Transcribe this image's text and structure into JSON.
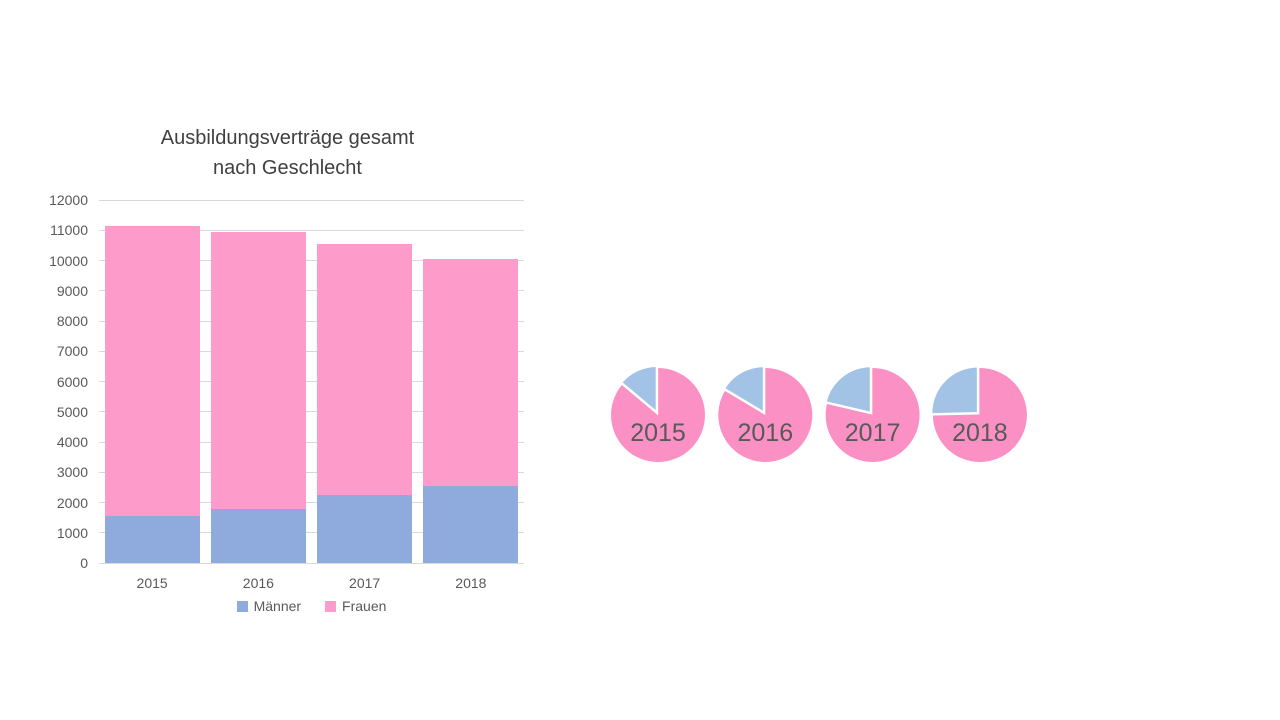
{
  "page": {
    "background": "#FFFFFF"
  },
  "chart_data": [
    {
      "type": "bar",
      "stacked": true,
      "title": "Ausbildungsverträge gesamt nach Geschlecht",
      "title_lines": [
        "Ausbildungsverträge gesamt",
        "nach Geschlecht"
      ],
      "categories": [
        "2015",
        "2016",
        "2017",
        "2018"
      ],
      "series": [
        {
          "name": "Männer",
          "color": "#8FAADC",
          "values": [
            1550,
            1800,
            2250,
            2550
          ]
        },
        {
          "name": "Frauen",
          "color": "#FD9BCA",
          "values": [
            9600,
            9150,
            8300,
            7500
          ]
        }
      ],
      "ylim": [
        0,
        12000
      ],
      "ytick_step": 1000,
      "grid": true,
      "legend_position": "bottom",
      "colors": {
        "grid": "#D9D9D9",
        "tick_label": "#595959",
        "title": "#404040",
        "legend_label": "#595959"
      }
    },
    {
      "type": "pie",
      "series_colors": {
        "Männer": "#A2C2E6",
        "Frauen": "#FB90C4"
      },
      "label_color": "#595959",
      "pies": [
        {
          "label": "2015",
          "slices": [
            {
              "name": "Männer",
              "value": 1550
            },
            {
              "name": "Frauen",
              "value": 9600
            }
          ]
        },
        {
          "label": "2016",
          "slices": [
            {
              "name": "Männer",
              "value": 1800
            },
            {
              "name": "Frauen",
              "value": 9150
            }
          ]
        },
        {
          "label": "2017",
          "slices": [
            {
              "name": "Männer",
              "value": 2250
            },
            {
              "name": "Frauen",
              "value": 8300
            }
          ]
        },
        {
          "label": "2018",
          "slices": [
            {
              "name": "Männer",
              "value": 2550
            },
            {
              "name": "Frauen",
              "value": 7500
            }
          ]
        }
      ]
    }
  ]
}
